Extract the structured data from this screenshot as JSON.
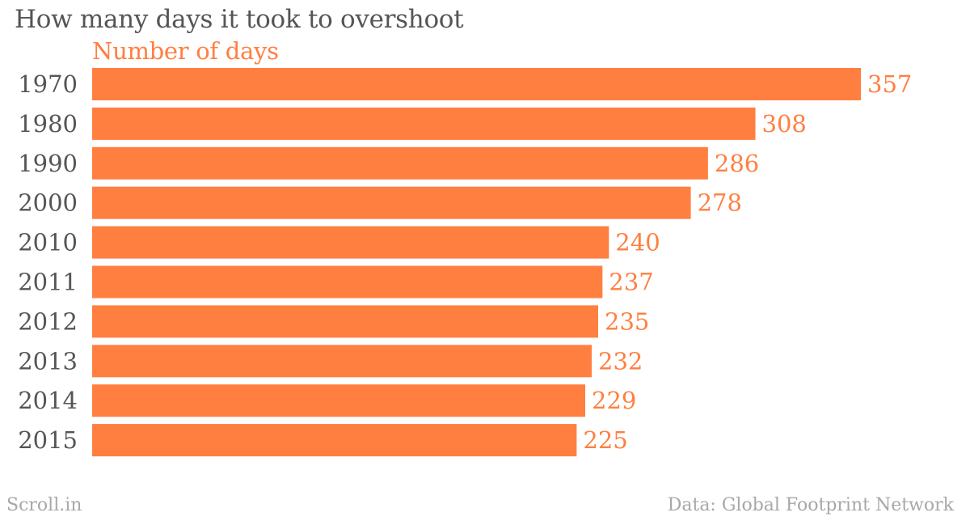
{
  "chart_data": {
    "type": "bar",
    "orientation": "horizontal",
    "title": "How many days it took to overshoot",
    "series_label": "Number of days",
    "categories": [
      "1970",
      "1980",
      "1990",
      "2000",
      "2010",
      "2011",
      "2012",
      "2013",
      "2014",
      "2015"
    ],
    "values": [
      357,
      308,
      286,
      278,
      240,
      237,
      235,
      232,
      229,
      225
    ],
    "xlim": [
      0,
      357
    ],
    "grid": false,
    "bar_color": "#ff7f41",
    "value_label_color": "#ff7f41",
    "category_label_color": "#555555"
  },
  "footer": {
    "brand": "Scroll.in",
    "source": "Data: Global Footprint Network"
  }
}
